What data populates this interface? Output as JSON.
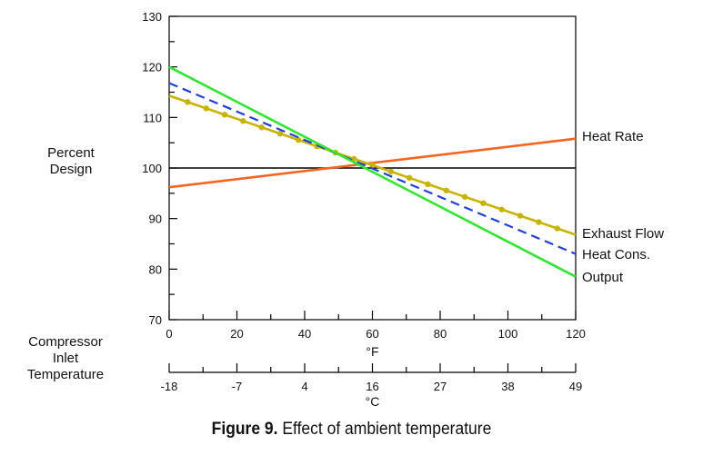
{
  "chart_data": {
    "type": "line",
    "y_axis": {
      "label_lines": [
        "Percent",
        "Design"
      ],
      "ylim": [
        70,
        130
      ],
      "ticks": [
        70,
        80,
        90,
        100,
        110,
        120,
        130
      ]
    },
    "x_axis_f": {
      "unit": "°F",
      "xlim": [
        0,
        120
      ],
      "ticks": [
        0,
        20,
        40,
        60,
        80,
        100,
        120
      ]
    },
    "x_axis_c": {
      "unit": "°C",
      "ticks": [
        "-18",
        "-7",
        "4",
        "16",
        "27",
        "38",
        "49"
      ]
    },
    "x_section_label_lines": [
      "Compressor",
      "Inlet",
      "Temperature"
    ],
    "reference_line": {
      "y": 100
    },
    "series": [
      {
        "name": "Heat Rate",
        "color": "#f26522",
        "style": "solid",
        "points": [
          [
            0,
            96.2
          ],
          [
            120,
            105.8
          ]
        ]
      },
      {
        "name": "Exhaust Flow",
        "color": "#c8b400",
        "style": "solid-markers",
        "points": [
          [
            0,
            114.3
          ],
          [
            120,
            86.8
          ]
        ]
      },
      {
        "name": "Heat Cons.",
        "color": "#1f3fdc",
        "style": "dashed",
        "points": [
          [
            0,
            116.8
          ],
          [
            120,
            83.0
          ]
        ]
      },
      {
        "name": "Output",
        "color": "#2ee82e",
        "style": "solid",
        "points": [
          [
            0,
            120.0
          ],
          [
            120,
            78.5
          ]
        ]
      }
    ]
  },
  "caption": {
    "label": "Figure 9.",
    "text": "Effect of ambient temperature"
  }
}
